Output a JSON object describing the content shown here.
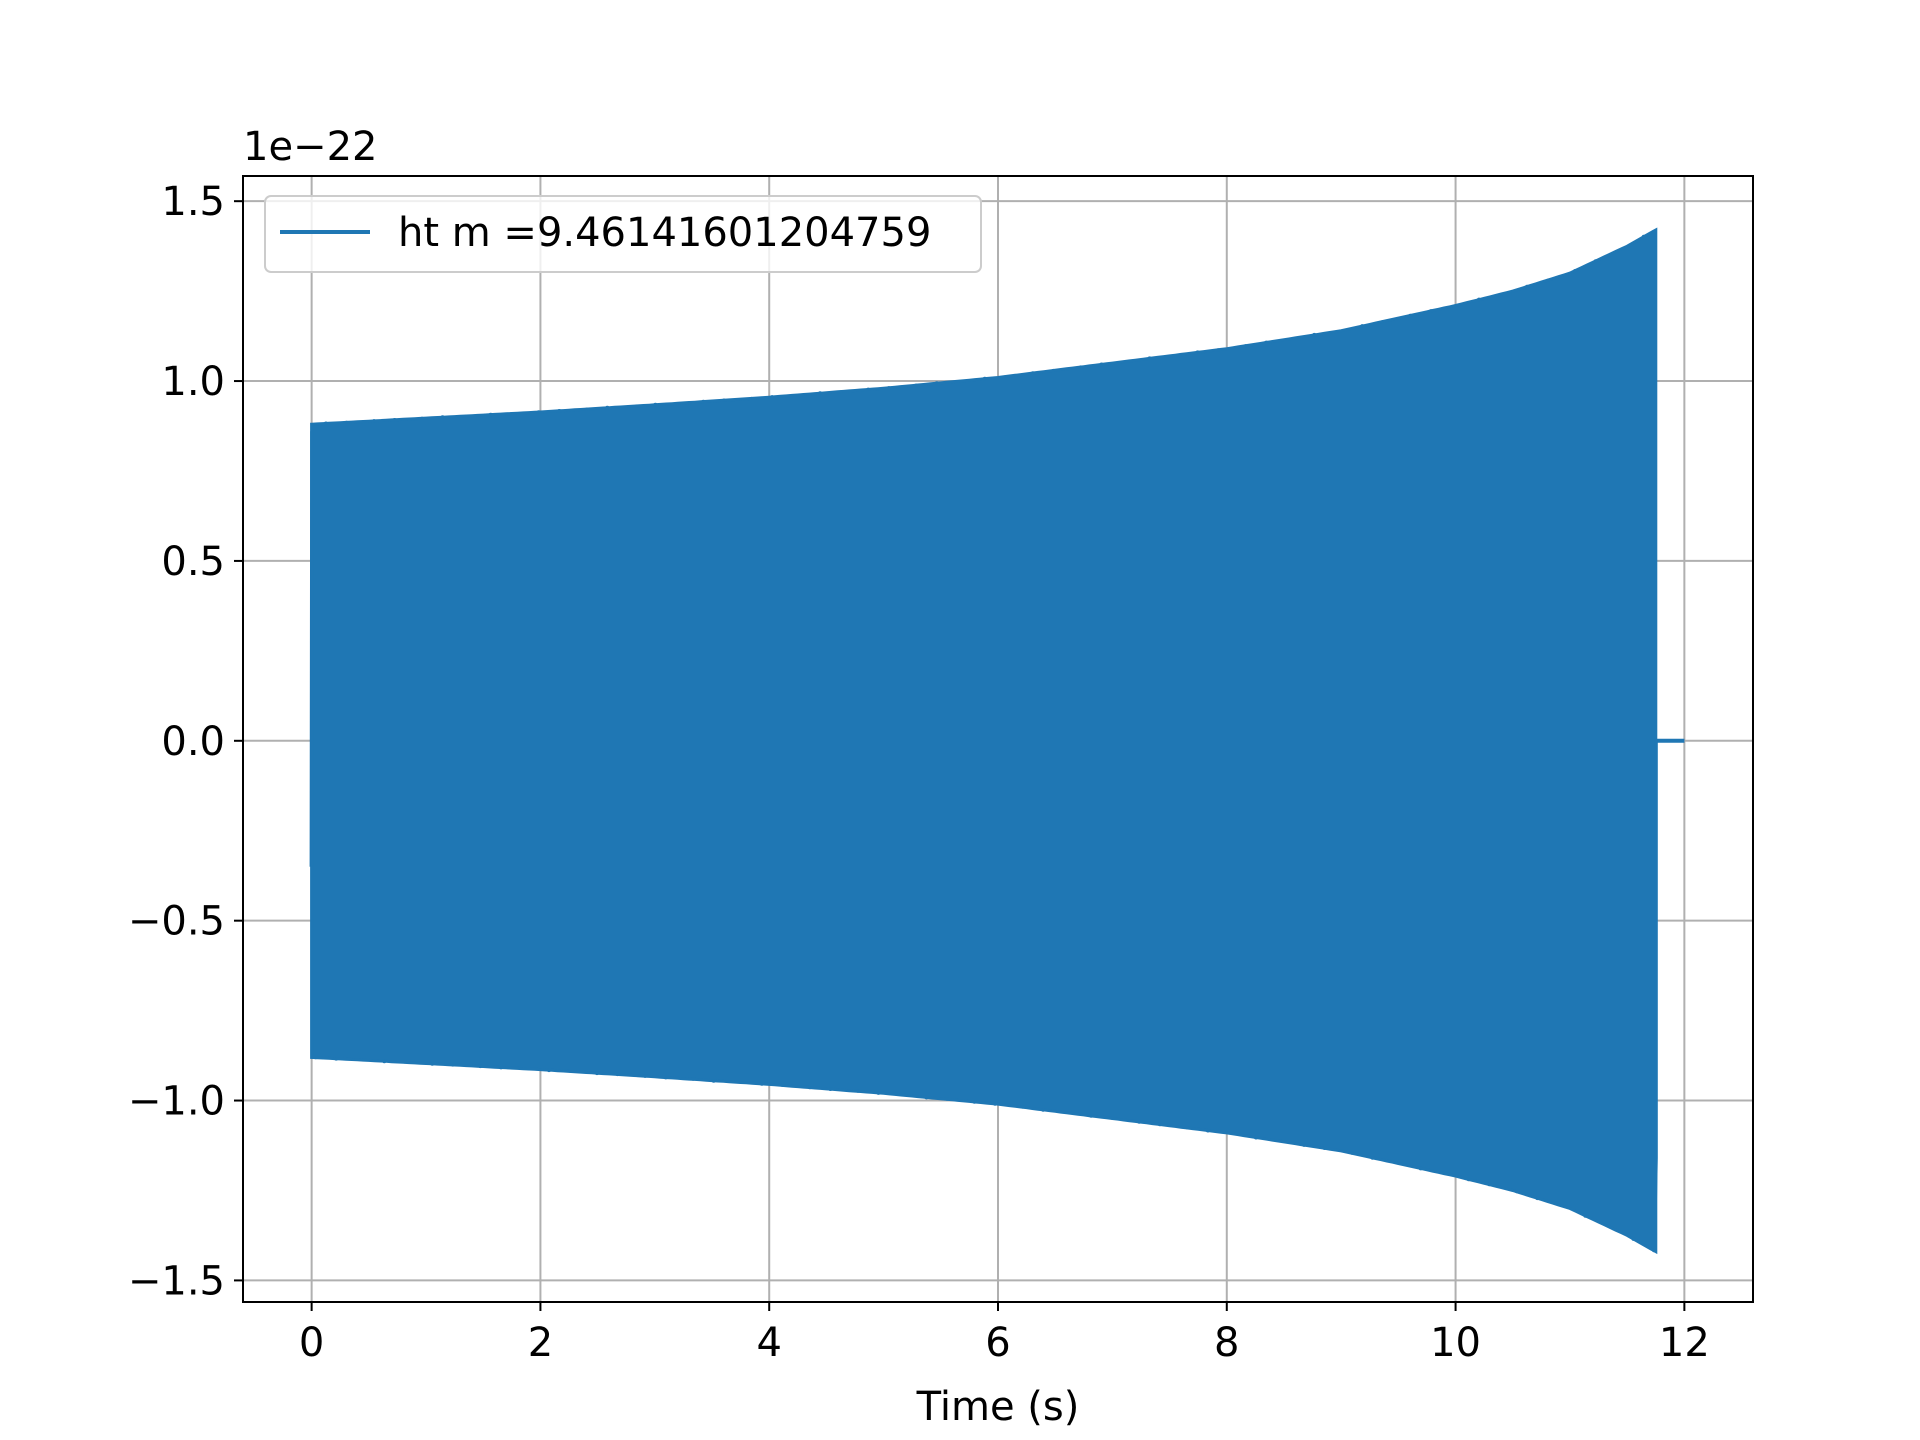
{
  "chart_data": {
    "type": "line",
    "title": "",
    "xlabel": "Time (s)",
    "ylabel": "",
    "y_offset_label": "1e−22",
    "xlim": [
      -0.6,
      12.6
    ],
    "ylim": [
      -1.56,
      1.57
    ],
    "x_ticks": [
      0,
      2,
      4,
      6,
      8,
      10,
      12
    ],
    "x_tick_labels": [
      "0",
      "2",
      "4",
      "6",
      "8",
      "10",
      "12"
    ],
    "y_ticks": [
      -1.5,
      -1.0,
      -0.5,
      0.0,
      0.5,
      1.0,
      1.5
    ],
    "y_tick_labels": [
      "−1.5",
      "−1.0",
      "−0.5",
      "0.0",
      "0.5",
      "1.0",
      "1.5"
    ],
    "grid": true,
    "legend_position": "upper-left",
    "series": [
      {
        "name": "ht m =9.46141601204759",
        "color": "#1f77b4",
        "signal_start_s": 0.0,
        "signal_end_s": 11.75,
        "trailing_zero_until_s": 12.0,
        "envelope_time_s": [
          0.0,
          1.0,
          2.0,
          3.0,
          4.0,
          5.0,
          6.0,
          7.0,
          8.0,
          9.0,
          10.0,
          10.5,
          11.0,
          11.5,
          11.75
        ],
        "envelope_amplitude": [
          0.88,
          0.897,
          0.914,
          0.934,
          0.955,
          0.98,
          1.01,
          1.05,
          1.09,
          1.14,
          1.21,
          1.25,
          1.3,
          1.375,
          1.42
        ]
      }
    ]
  }
}
